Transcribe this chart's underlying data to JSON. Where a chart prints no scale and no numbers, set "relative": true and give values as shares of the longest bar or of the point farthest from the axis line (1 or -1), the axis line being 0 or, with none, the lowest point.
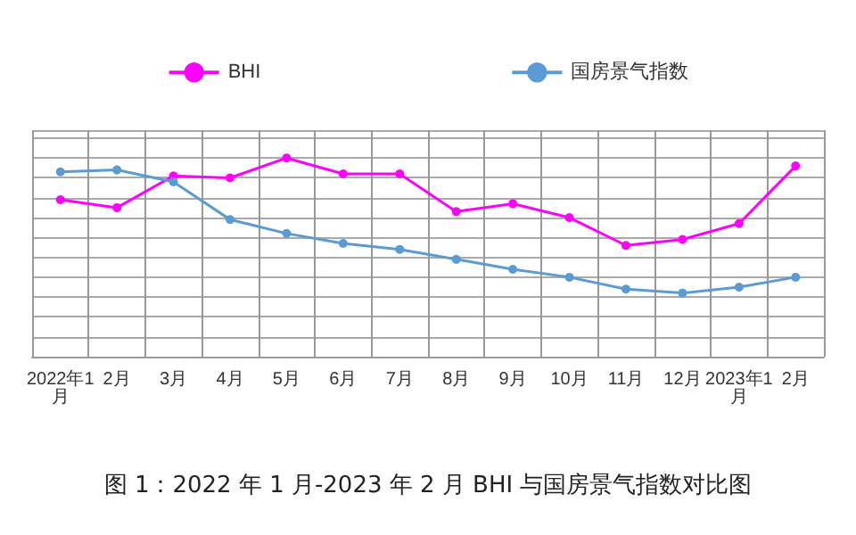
{
  "chart_data": {
    "type": "line",
    "title": "图 1：2022 年 1 月-2023 年 2 月 BHI 与国房景气指数对比图",
    "categories": [
      "2022年1月",
      "2月",
      "3月",
      "4月",
      "5月",
      "6月",
      "7月",
      "8月",
      "9月",
      "10月",
      "11月",
      "12月",
      "2023年1月",
      "2月"
    ],
    "relative": true,
    "series": [
      {
        "name": "BHI",
        "color": "#ff00ff",
        "values": [
          0.79,
          0.75,
          0.91,
          0.9,
          1,
          0.92,
          0.92,
          0.73,
          0.77,
          0.7,
          0.56,
          0.59,
          0.67,
          0.96
        ]
      },
      {
        "name": "国房景气指数",
        "color": "#5b9bd5",
        "values": [
          0.93,
          0.94,
          0.88,
          0.69,
          0.62,
          0.57,
          0.54,
          0.49,
          0.44,
          0.4,
          0.34,
          0.32,
          0.35,
          0.4
        ]
      }
    ],
    "grid": true,
    "legend": "top",
    "marker": "circle",
    "line_style": "solid"
  }
}
